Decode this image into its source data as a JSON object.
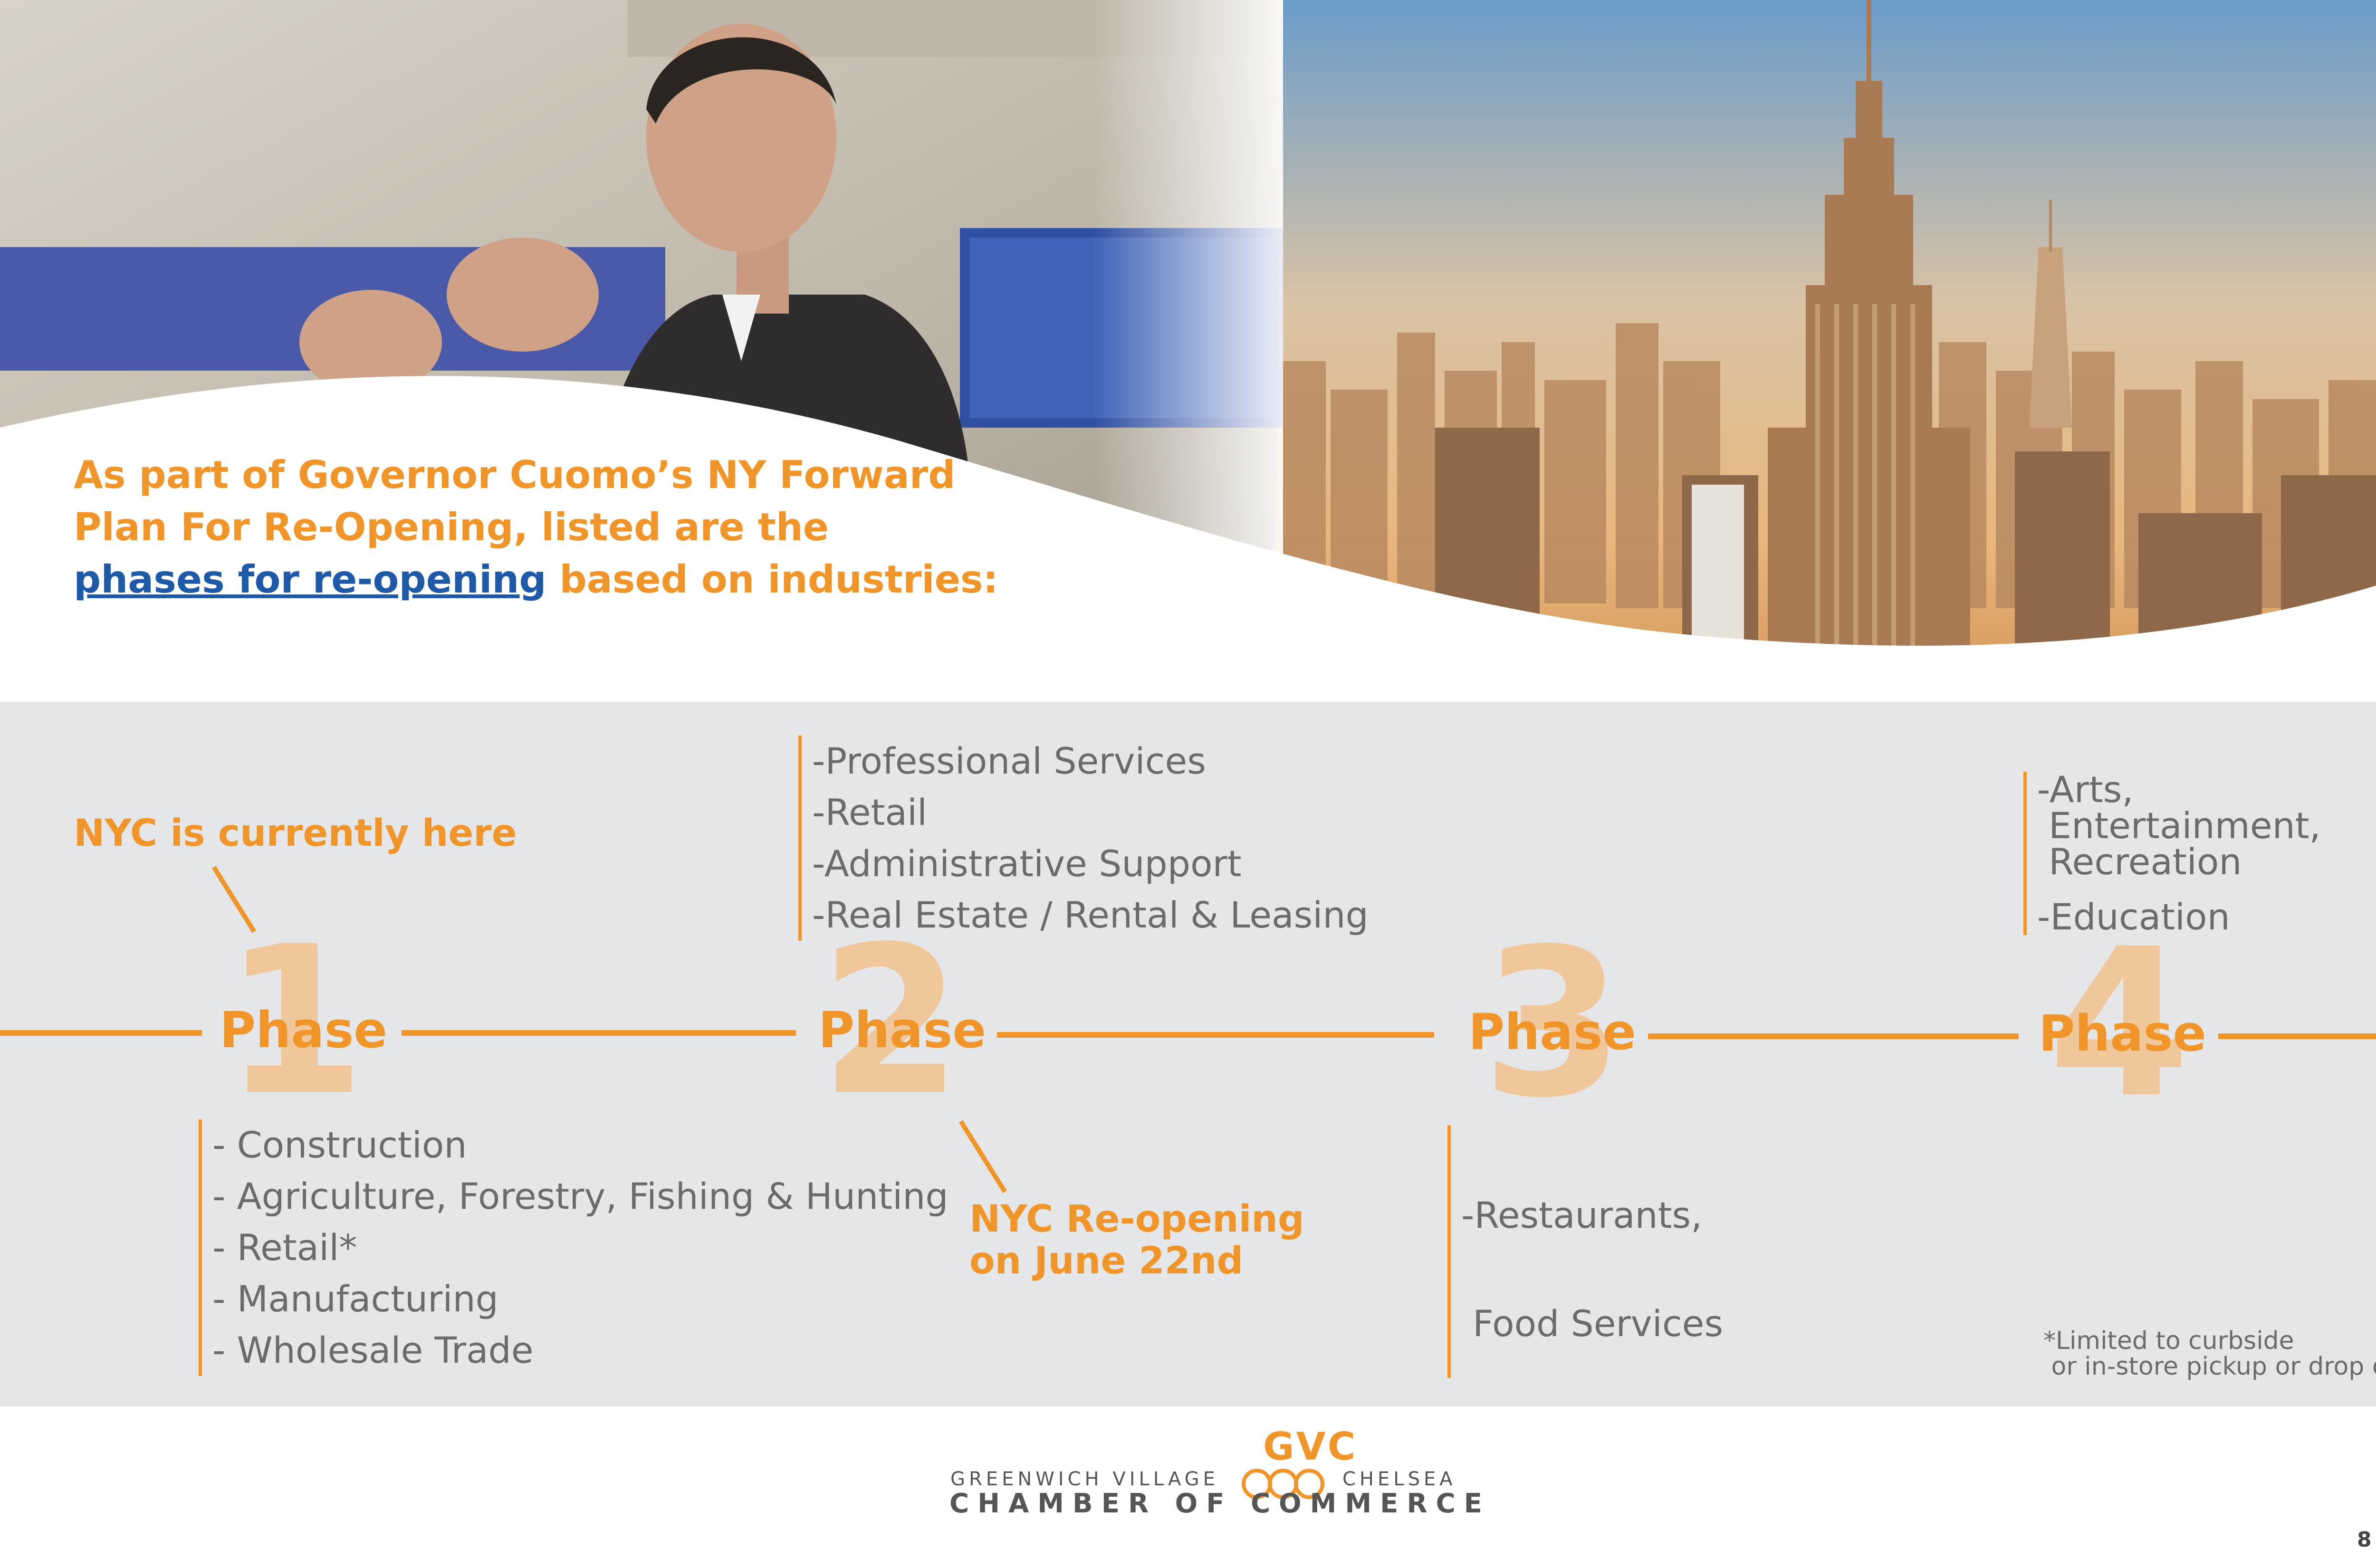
{
  "intro": {
    "line1": "As part of Governor Cuomo’s NY Forward",
    "line2": "Plan For Re-Opening, listed are the",
    "link": "phases for re-opening",
    "line3_rest": " based on industries:"
  },
  "phases": [
    {
      "number": "1",
      "word": "Phase"
    },
    {
      "number": "2",
      "word": "Phase"
    },
    {
      "number": "3",
      "word": "Phase"
    },
    {
      "number": "4",
      "word": "Phase"
    }
  ],
  "phase1_list": [
    "- Construction",
    "- Agriculture, Forestry, Fishing & Hunting",
    "- Retail*",
    "- Manufacturing",
    "- Wholesale Trade"
  ],
  "phase2_list": [
    "-Professional Services",
    "-Retail",
    "-Administrative Support",
    "-Real Estate / Rental  &  Leasing"
  ],
  "phase3_list": [
    "-Restaurants,",
    " Food Services"
  ],
  "phase4_list": [
    "-Arts,",
    " Entertainment,",
    " Recreation",
    "-Education"
  ],
  "callouts": {
    "current": "NYC is currently here",
    "reopen_line1": "NYC Re-opening",
    "reopen_line2": "on June 22nd"
  },
  "footnote": "*Limited to curbside\n or in-store pickup or drop off",
  "logo": {
    "mono": "GVC",
    "left": "GREENWICH VILLAGE",
    "right": "CHELSEA",
    "bottom": "CHAMBER OF COMMERCE"
  },
  "page_number": "8",
  "colors": {
    "accent": "#f0952a",
    "link": "#1f5aa8",
    "band": "#e5e6e8",
    "number": "#efc79a",
    "text": "#6b6b6b"
  }
}
